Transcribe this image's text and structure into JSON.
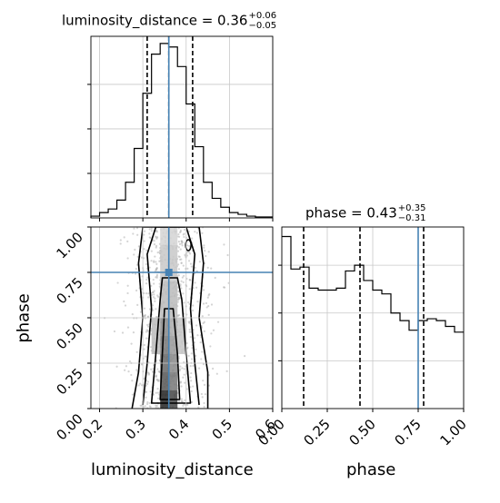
{
  "titles": {
    "lum": {
      "prefix": "luminosity_distance = 0.36",
      "upper": "+0.06",
      "lower": "−0.05"
    },
    "phase": {
      "prefix": "phase = 0.43",
      "upper": "+0.35",
      "lower": "−0.31"
    }
  },
  "axis_labels": {
    "x_lum": "luminosity_distance",
    "x_phase": "phase",
    "y_phase": "phase"
  },
  "colors": {
    "truth": "#4682b4",
    "hist": "#000000",
    "points": "#b0b0b0",
    "grid": "#c8c8c8"
  },
  "chart_data": {
    "type": "corner",
    "parameters": [
      "luminosity_distance",
      "phase"
    ],
    "truths": {
      "luminosity_distance": 0.36,
      "phase": 0.75
    },
    "quantiles": {
      "luminosity_distance": [
        0.31,
        0.36,
        0.415
      ],
      "phase": [
        0.12,
        0.43,
        0.78
      ]
    },
    "ranges": {
      "luminosity_distance": [
        0.18,
        0.6
      ],
      "phase": [
        0,
        1
      ]
    },
    "ticks": {
      "luminosity_distance": [
        "0.2",
        "0.3",
        "0.4",
        "0.5",
        "0.6"
      ],
      "phase": [
        "0.00",
        "0.25",
        "0.50",
        "0.75",
        "1.00"
      ]
    },
    "hist_luminosity_distance": {
      "edges": [
        0.18,
        0.2,
        0.22,
        0.24,
        0.26,
        0.28,
        0.3,
        0.32,
        0.34,
        0.36,
        0.38,
        0.4,
        0.42,
        0.44,
        0.46,
        0.48,
        0.5,
        0.52,
        0.54,
        0.56,
        0.58,
        0.6
      ],
      "counts": [
        1,
        3,
        5,
        10,
        20,
        39,
        70,
        92,
        98,
        96,
        85,
        64,
        40,
        20,
        11,
        6,
        3,
        2,
        1,
        0.5,
        0.5
      ]
    },
    "hist_phase": {
      "edges": [
        0,
        0.05,
        0.1,
        0.15,
        0.2,
        0.25,
        0.3,
        0.35,
        0.4,
        0.45,
        0.5,
        0.55,
        0.6,
        0.65,
        0.7,
        0.75,
        0.8,
        0.85,
        0.9,
        0.95,
        1.0
      ],
      "counts": [
        90,
        73,
        74,
        63,
        62,
        62,
        63,
        72,
        75,
        67,
        62,
        60,
        50,
        46,
        41,
        46,
        47,
        46,
        43,
        40
      ]
    },
    "contour_levels": 4,
    "grid": true
  }
}
